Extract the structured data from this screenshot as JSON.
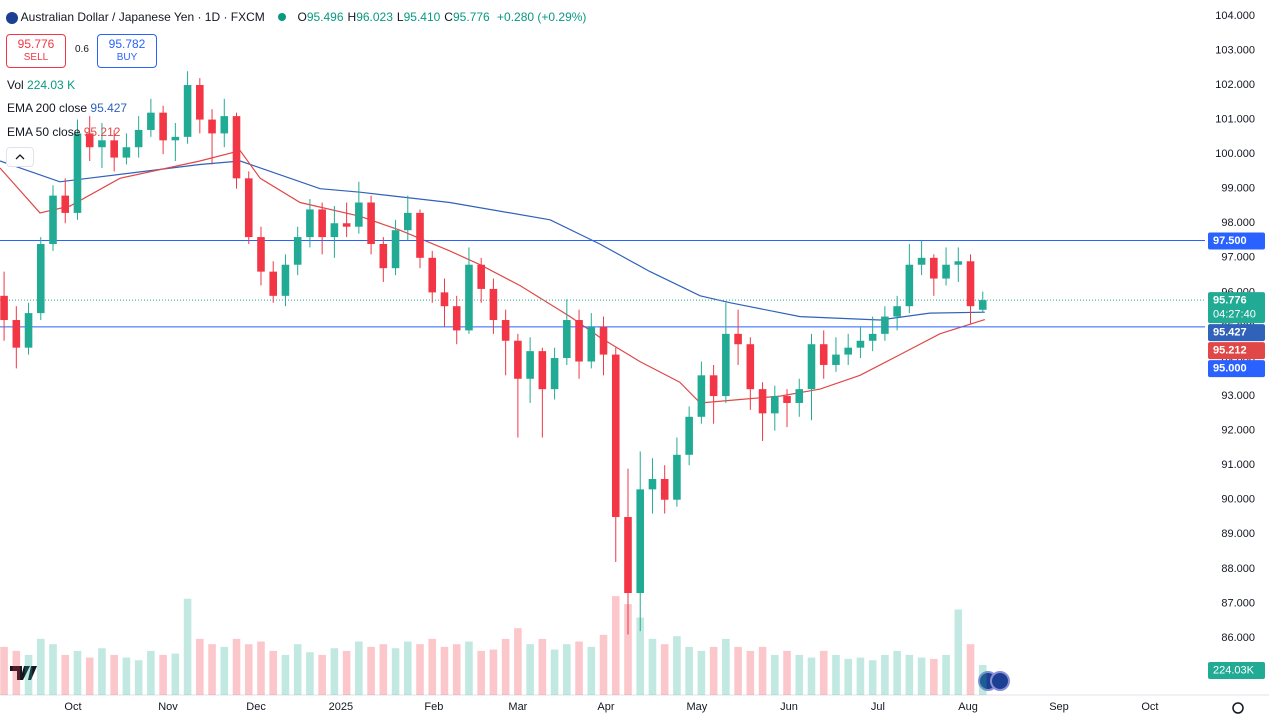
{
  "header": {
    "symbol": "Australian Dollar / Japanese Yen · 1D · FXCM",
    "ohlc": [
      {
        "label": "O",
        "value": "95.496"
      },
      {
        "label": "H",
        "value": "96.023"
      },
      {
        "label": "L",
        "value": "95.410"
      },
      {
        "label": "C",
        "value": "95.776"
      }
    ],
    "change": "+0.280 (+0.29%)"
  },
  "trade": {
    "sell_price": "95.776",
    "sell": "SELL",
    "spread": "0.6",
    "buy_price": "95.782",
    "buy": "BUY"
  },
  "chart_data": {
    "type": "candlestick",
    "up_color": "#22ab94",
    "down_color": "#f23645",
    "x": [
      1,
      4,
      7,
      10,
      13,
      16,
      19,
      22,
      25,
      28,
      31,
      34,
      37,
      40,
      43,
      46,
      49,
      52,
      55,
      58,
      61,
      64,
      67,
      70,
      73,
      76,
      79,
      82,
      85,
      88,
      91,
      94,
      97,
      100,
      103,
      106,
      109,
      112,
      115,
      118,
      121,
      124,
      127,
      130,
      133,
      136,
      139,
      142,
      145,
      148,
      151,
      154,
      157,
      160,
      163,
      166,
      169,
      172,
      175,
      178,
      181,
      184,
      187,
      190,
      193,
      196,
      199,
      202,
      205,
      208,
      211,
      214,
      217,
      220,
      223,
      226,
      229,
      232,
      235,
      238,
      241
    ],
    "open": [
      95.9,
      95.2,
      94.4,
      95.4,
      97.4,
      98.8,
      98.3,
      100.6,
      100.2,
      100.4,
      99.9,
      100.2,
      100.7,
      101.2,
      100.4,
      100.5,
      102.0,
      101.0,
      100.6,
      101.1,
      99.3,
      97.6,
      96.6,
      95.9,
      96.8,
      97.6,
      98.4,
      97.6,
      98.0,
      97.9,
      98.6,
      97.4,
      96.7,
      97.8,
      98.3,
      97.0,
      96.0,
      95.6,
      94.9,
      96.8,
      96.1,
      95.2,
      94.6,
      93.5,
      94.3,
      93.2,
      94.1,
      95.2,
      94.0,
      95.0,
      94.2,
      89.5,
      87.3,
      90.3,
      90.6,
      90.0,
      91.3,
      92.4,
      93.6,
      93.0,
      94.8,
      94.5,
      93.2,
      92.5,
      93.0,
      92.8,
      93.2,
      94.5,
      93.9,
      94.2,
      94.4,
      94.6,
      94.8,
      95.3,
      95.6,
      96.8,
      97.0,
      96.4,
      96.8,
      96.9,
      95.496
    ],
    "high": [
      96.6,
      95.6,
      95.7,
      97.6,
      99.1,
      99.3,
      101.0,
      101.1,
      100.9,
      100.7,
      100.6,
      101.1,
      101.6,
      101.4,
      100.9,
      102.4,
      102.2,
      101.3,
      101.6,
      101.2,
      99.5,
      97.9,
      96.9,
      97.1,
      97.9,
      98.7,
      98.6,
      98.5,
      98.6,
      99.2,
      98.8,
      97.6,
      98.1,
      98.8,
      98.4,
      97.2,
      96.4,
      95.9,
      97.3,
      97.0,
      96.4,
      95.5,
      94.8,
      94.7,
      94.4,
      94.4,
      95.8,
      95.5,
      95.4,
      95.3,
      94.4,
      90.9,
      91.4,
      91.2,
      91.0,
      91.8,
      92.7,
      94.0,
      93.9,
      95.7,
      95.5,
      94.7,
      93.4,
      93.3,
      93.2,
      93.5,
      94.8,
      94.9,
      94.7,
      94.8,
      95.0,
      95.3,
      95.6,
      95.9,
      97.4,
      97.5,
      97.1,
      97.3,
      97.3,
      97.1,
      96.023
    ],
    "low": [
      94.6,
      93.8,
      94.2,
      95.2,
      97.2,
      98.0,
      98.1,
      99.8,
      99.6,
      99.5,
      99.7,
      99.9,
      100.5,
      100.0,
      99.8,
      100.3,
      100.6,
      99.7,
      100.2,
      99.0,
      97.4,
      96.2,
      95.7,
      95.6,
      96.5,
      97.3,
      97.1,
      97.0,
      97.6,
      97.7,
      97.1,
      96.3,
      96.5,
      97.5,
      96.7,
      95.7,
      95.0,
      94.5,
      94.8,
      95.7,
      94.8,
      93.6,
      91.8,
      92.8,
      91.8,
      92.9,
      93.9,
      93.5,
      93.8,
      93.6,
      88.2,
      86.1,
      86.2,
      89.6,
      89.6,
      89.8,
      91.0,
      92.2,
      92.2,
      92.8,
      93.9,
      92.6,
      91.7,
      92.0,
      92.1,
      92.4,
      92.3,
      93.5,
      93.7,
      93.9,
      94.1,
      94.3,
      94.6,
      94.9,
      95.4,
      96.5,
      95.9,
      96.2,
      96.3,
      95.1,
      95.41
    ],
    "close": [
      95.2,
      94.4,
      95.4,
      97.4,
      98.8,
      98.3,
      100.6,
      100.2,
      100.4,
      99.9,
      100.2,
      100.7,
      101.2,
      100.4,
      100.5,
      102.0,
      101.0,
      100.6,
      101.1,
      99.3,
      97.6,
      96.6,
      95.9,
      96.8,
      97.6,
      98.4,
      97.6,
      98.0,
      97.9,
      98.6,
      97.4,
      96.7,
      97.8,
      98.3,
      97.0,
      96.0,
      95.6,
      94.9,
      96.8,
      96.1,
      95.2,
      94.6,
      93.5,
      94.3,
      93.2,
      94.1,
      95.2,
      94.0,
      95.0,
      94.2,
      89.5,
      87.3,
      90.3,
      90.6,
      90.0,
      91.3,
      92.4,
      93.6,
      93.0,
      94.8,
      94.5,
      93.2,
      92.5,
      93.0,
      92.8,
      93.2,
      94.5,
      93.9,
      94.2,
      94.4,
      94.6,
      94.8,
      95.3,
      95.6,
      96.8,
      97.0,
      96.4,
      96.8,
      96.9,
      95.6,
      95.776
    ],
    "volume": {
      "name": "Vol",
      "legend_label": "224.03 K",
      "axis_label": "224.03K",
      "vlim": [
        0,
        5200
      ],
      "values": [
        360,
        330,
        300,
        420,
        380,
        300,
        330,
        280,
        350,
        300,
        280,
        260,
        330,
        300,
        310,
        720,
        420,
        380,
        360,
        420,
        380,
        400,
        330,
        300,
        380,
        320,
        300,
        350,
        330,
        400,
        360,
        380,
        350,
        400,
        380,
        420,
        360,
        380,
        400,
        330,
        340,
        420,
        500,
        380,
        420,
        340,
        380,
        400,
        360,
        450,
        740,
        680,
        580,
        420,
        380,
        440,
        360,
        330,
        360,
        420,
        360,
        330,
        360,
        300,
        330,
        300,
        280,
        330,
        300,
        270,
        280,
        260,
        300,
        330,
        300,
        280,
        270,
        300,
        640,
        380,
        224.03
      ]
    },
    "series": [
      {
        "name": "EMA 200 close",
        "color": "#2f62b8",
        "last_label": "95.427",
        "x": [
          0,
          14.7,
          49,
          58.9,
          78.5,
          88.3,
          110.3,
          134.9,
          147.1,
          159.4,
          171.7,
          179,
          196.2,
          215.8,
          228,
          241.5
        ],
        "values": [
          99.8,
          99.2,
          99.7,
          99.8,
          99.0,
          98.9,
          98.6,
          98.1,
          97.4,
          96.6,
          95.9,
          95.7,
          95.3,
          95.2,
          95.4,
          95.427
        ]
      },
      {
        "name": "EMA 50 close",
        "color": "#e04848",
        "last_label": "95.212",
        "x": [
          0,
          9.8,
          17.2,
          29.4,
          49,
          58.9,
          63.8,
          73.6,
          88.3,
          98.1,
          110.3,
          117.7,
          127.5,
          139.8,
          147.1,
          156.9,
          166.7,
          171.7,
          181.5,
          191.3,
          201.1,
          210.9,
          220.7,
          230.5,
          241.5
        ],
        "values": [
          99.6,
          98.3,
          98.5,
          99.3,
          99.8,
          100.1,
          99.3,
          98.6,
          98.2,
          97.8,
          97.2,
          96.8,
          96.2,
          95.3,
          94.7,
          94.0,
          93.4,
          92.8,
          92.9,
          93.0,
          93.2,
          93.6,
          94.2,
          94.8,
          95.212
        ]
      }
    ],
    "hlines": [
      {
        "value": 97.5,
        "label": "97.500",
        "color": "#2962ff"
      },
      {
        "value": 95.0,
        "label": "95.000",
        "color": "#2962ff"
      }
    ],
    "last": {
      "value": 95.776,
      "label": "95.776",
      "countdown": "04:27:40"
    },
    "xlim": [
      0,
      295.5
    ],
    "xticks": [
      {
        "value": 17.9,
        "label": "Oct"
      },
      {
        "value": 41.2,
        "label": "Nov"
      },
      {
        "value": 62.8,
        "label": "Dec"
      },
      {
        "value": 83.6,
        "label": "2025"
      },
      {
        "value": 106.4,
        "label": "Feb"
      },
      {
        "value": 127,
        "label": "Mar"
      },
      {
        "value": 148.6,
        "label": "Apr"
      },
      {
        "value": 170.9,
        "label": "May"
      },
      {
        "value": 193.5,
        "label": "Jun"
      },
      {
        "value": 215.3,
        "label": "Jul"
      },
      {
        "value": 237.4,
        "label": "Aug"
      },
      {
        "value": 259.7,
        "label": "Sep"
      },
      {
        "value": 282,
        "label": "Oct"
      }
    ],
    "ylim": [
      84.35,
      104.46
    ],
    "yticks": [
      {
        "value": 86,
        "label": "86.000"
      },
      {
        "value": 87,
        "label": "87.000"
      },
      {
        "value": 88,
        "label": "88.000"
      },
      {
        "value": 89,
        "label": "89.000"
      },
      {
        "value": 90,
        "label": "90.000"
      },
      {
        "value": 91,
        "label": "91.000"
      },
      {
        "value": 92,
        "label": "92.000"
      },
      {
        "value": 93,
        "label": "93.000"
      },
      {
        "value": 94,
        "label": "94.000"
      },
      {
        "value": 95,
        "label": "95.000"
      },
      {
        "value": 96,
        "label": "96.000"
      },
      {
        "value": 97,
        "label": "97.000"
      },
      {
        "value": 98,
        "label": "98.000"
      },
      {
        "value": 99,
        "label": "99.000"
      },
      {
        "value": 100,
        "label": "100.000"
      },
      {
        "value": 101,
        "label": "101.000"
      },
      {
        "value": 102,
        "label": "102.000"
      },
      {
        "value": 103,
        "label": "103.000"
      },
      {
        "value": 104,
        "label": "104.000"
      }
    ],
    "grid": false
  }
}
